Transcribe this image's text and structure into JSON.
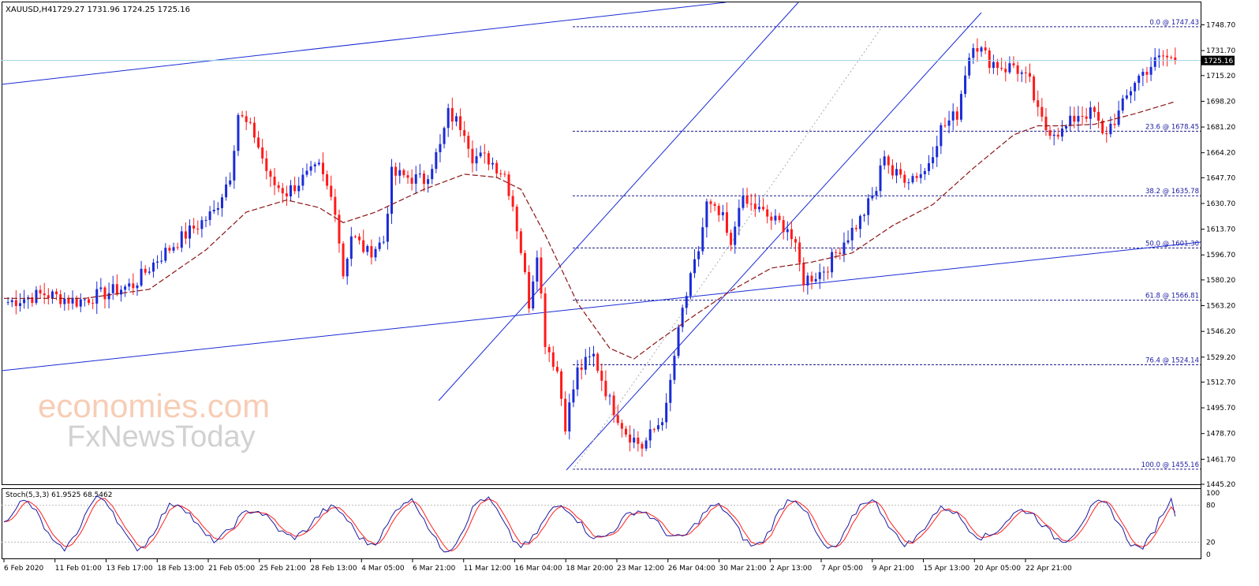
{
  "header": {
    "symbol": "XAUUSD,H4",
    "ohlc": "1729.27 1731.96 1724.25 1725.16"
  },
  "watermark": {
    "line1": "economies.com",
    "line2": "FxNewsToday"
  },
  "colors": {
    "bull": "#1a2bd6",
    "bear": "#ff1a1a",
    "ma": "#8b1414",
    "channel": "#1a2bd6",
    "fib": "#1a1a8c",
    "priceLine": "#9fd3e6",
    "stochMain": "#1a1aa0",
    "stochSignal": "#ff2020"
  },
  "chart_data": {
    "type": "candlestick",
    "symbol": "XAUUSD",
    "timeframe": "H4",
    "current_price": "1725.16",
    "y_ticks": [
      "1748.70",
      "1731.70",
      "1715.20",
      "1698.20",
      "1681.20",
      "1664.20",
      "1647.70",
      "1630.70",
      "1613.70",
      "1596.70",
      "1580.20",
      "1563.20",
      "1546.20",
      "1529.20",
      "1512.70",
      "1495.70",
      "1478.70",
      "1461.70",
      "1445.20"
    ],
    "ylim": [
      1445.2,
      1748.7
    ],
    "x_ticks": [
      "6 Feb 2020",
      "11 Feb 01:00",
      "13 Feb 17:00",
      "18 Feb 13:00",
      "21 Feb 05:00",
      "25 Feb 21:00",
      "28 Feb 13:00",
      "4 Mar 05:00",
      "6 Mar 21:00",
      "11 Mar 12:00",
      "16 Mar 04:00",
      "18 Mar 20:00",
      "23 Mar 12:00",
      "26 Mar 04:00",
      "30 Mar 21:00",
      "2 Apr 13:00",
      "7 Apr 05:00",
      "9 Apr 21:00",
      "15 Apr 13:00",
      "20 Apr 05:00",
      "22 Apr 21:00"
    ],
    "anchors": [
      [
        0,
        1565
      ],
      [
        10,
        1571
      ],
      [
        18,
        1566
      ],
      [
        26,
        1572
      ],
      [
        32,
        1577
      ],
      [
        38,
        1594
      ],
      [
        44,
        1608
      ],
      [
        52,
        1625
      ],
      [
        56,
        1650
      ],
      [
        58,
        1690
      ],
      [
        62,
        1676
      ],
      [
        66,
        1645
      ],
      [
        70,
        1638
      ],
      [
        74,
        1647
      ],
      [
        78,
        1654
      ],
      [
        82,
        1628
      ],
      [
        84,
        1584
      ],
      [
        86,
        1610
      ],
      [
        90,
        1598
      ],
      [
        94,
        1606
      ],
      [
        96,
        1650
      ],
      [
        100,
        1648
      ],
      [
        104,
        1646
      ],
      [
        108,
        1668
      ],
      [
        110,
        1690
      ],
      [
        114,
        1680
      ],
      [
        116,
        1662
      ],
      [
        120,
        1660
      ],
      [
        124,
        1650
      ],
      [
        126,
        1630
      ],
      [
        128,
        1600
      ],
      [
        130,
        1565
      ],
      [
        132,
        1600
      ],
      [
        134,
        1540
      ],
      [
        137,
        1520
      ],
      [
        139,
        1485
      ],
      [
        142,
        1520
      ],
      [
        146,
        1530
      ],
      [
        150,
        1500
      ],
      [
        154,
        1480
      ],
      [
        158,
        1470
      ],
      [
        162,
        1485
      ],
      [
        164,
        1495
      ],
      [
        166,
        1530
      ],
      [
        168,
        1560
      ],
      [
        172,
        1600
      ],
      [
        174,
        1630
      ],
      [
        178,
        1620
      ],
      [
        180,
        1600
      ],
      [
        182,
        1632
      ],
      [
        186,
        1628
      ],
      [
        190,
        1620
      ],
      [
        194,
        1615
      ],
      [
        196,
        1600
      ],
      [
        198,
        1580
      ],
      [
        202,
        1585
      ],
      [
        204,
        1590
      ],
      [
        208,
        1606
      ],
      [
        212,
        1620
      ],
      [
        216,
        1640
      ],
      [
        218,
        1665
      ],
      [
        220,
        1650
      ],
      [
        224,
        1648
      ],
      [
        228,
        1652
      ],
      [
        232,
        1680
      ],
      [
        236,
        1690
      ],
      [
        238,
        1718
      ],
      [
        240,
        1738
      ],
      [
        244,
        1725
      ],
      [
        248,
        1720
      ],
      [
        250,
        1722
      ],
      [
        254,
        1710
      ],
      [
        256,
        1690
      ],
      [
        258,
        1680
      ],
      [
        262,
        1678
      ],
      [
        266,
        1690
      ],
      [
        270,
        1690
      ],
      [
        272,
        1675
      ],
      [
        276,
        1690
      ],
      [
        280,
        1712
      ],
      [
        284,
        1722
      ],
      [
        287,
        1728
      ],
      [
        290,
        1725
      ]
    ],
    "fibonacci": [
      {
        "level": "0.0",
        "price": "1747.43"
      },
      {
        "level": "23.6",
        "price": "1678.45"
      },
      {
        "level": "38.2",
        "price": "1635.78"
      },
      {
        "level": "50.0",
        "price": "1601.30"
      },
      {
        "level": "61.8",
        "price": "1566.81"
      },
      {
        "level": "76.4",
        "price": "1524.14"
      },
      {
        "level": "100.0",
        "price": "1455.16"
      }
    ],
    "ma": [
      [
        0,
        1568
      ],
      [
        20,
        1568
      ],
      [
        36,
        1574
      ],
      [
        50,
        1600
      ],
      [
        60,
        1625
      ],
      [
        70,
        1633
      ],
      [
        78,
        1628
      ],
      [
        84,
        1618
      ],
      [
        92,
        1625
      ],
      [
        104,
        1640
      ],
      [
        114,
        1650
      ],
      [
        122,
        1648
      ],
      [
        128,
        1640
      ],
      [
        134,
        1610
      ],
      [
        142,
        1565
      ],
      [
        150,
        1535
      ],
      [
        156,
        1528
      ],
      [
        162,
        1540
      ],
      [
        170,
        1555
      ],
      [
        180,
        1573
      ],
      [
        190,
        1588
      ],
      [
        200,
        1592
      ],
      [
        210,
        1598
      ],
      [
        220,
        1616
      ],
      [
        230,
        1630
      ],
      [
        240,
        1654
      ],
      [
        250,
        1676
      ],
      [
        256,
        1682
      ],
      [
        262,
        1682
      ],
      [
        270,
        1683
      ],
      [
        280,
        1690
      ],
      [
        290,
        1698
      ]
    ],
    "stochastic": {
      "title": "Stoch(5,3,3) 61.9525 68.5462",
      "y_ticks": [
        "100",
        "80",
        "20",
        "0"
      ],
      "levels": [
        20,
        80
      ],
      "main_value": 61.9525,
      "signal_value": 68.5462
    }
  },
  "fib_label_format": "{level} @ {price}"
}
